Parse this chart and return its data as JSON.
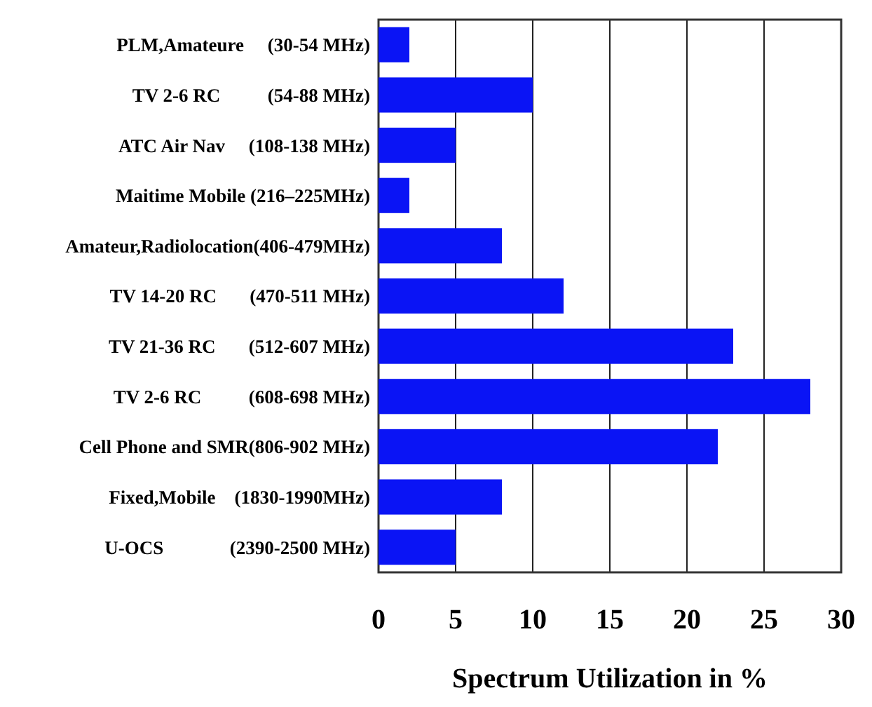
{
  "chart_data": {
    "type": "bar",
    "orientation": "horizontal",
    "xlabel": "Spectrum Utilization in %",
    "categories": [
      "PLM,Amateure     (30-54 MHz)",
      "TV 2-6 RC          (54-88 MHz)",
      "ATC Air Nav     (108-138 MHz)",
      "Maitime Mobile (216–225MHz)",
      "Amateur,Radiolocation(406-479MHz)",
      "TV 14-20 RC       (470-511 MHz)",
      "TV 21-36 RC       (512-607 MHz)",
      "TV 2-6 RC          (608-698 MHz)",
      "Cell Phone and SMR(806-902 MHz)",
      "Fixed,Mobile    (1830-1990MHz)",
      "U-OCS              (2390-2500 MHz)"
    ],
    "values": [
      2,
      10,
      5,
      2,
      8,
      12,
      23,
      28,
      22,
      8,
      5
    ],
    "color": "#0a14f5",
    "xlim": [
      0,
      30
    ],
    "xticks": [
      0,
      5,
      10,
      15,
      20,
      25,
      30
    ],
    "grid": "x"
  }
}
